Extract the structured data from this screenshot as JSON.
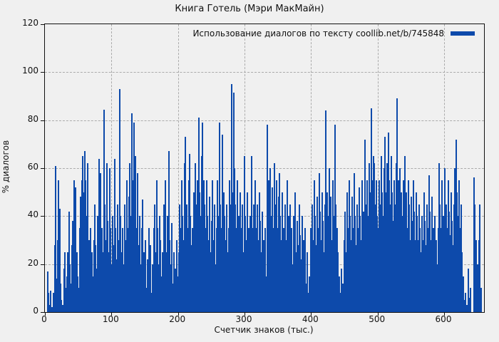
{
  "title": "Книга Готель (Мэри МакМайн)",
  "legend": {
    "label": "Использование диалогов по тексту coollib.net/b/745848",
    "swatch_color": "#0d4aab"
  },
  "colors": {
    "bar": "#0d4aab",
    "background": "#f0f0f0",
    "grid": "#ababab",
    "axis": "#111111"
  },
  "chart_data": {
    "type": "bar",
    "title": "Книга Готель (Мэри МакМайн)",
    "xlabel": "Счетчик знаков (тыс.)",
    "ylabel": "% диалогов",
    "legend": "Использование диалогов по тексту coollib.net/b/745848",
    "legend_position": "top-right-inside",
    "bar_color": "#0d4aab",
    "grid": true,
    "xlim": [
      0,
      660
    ],
    "ylim": [
      0,
      120
    ],
    "xticks": [
      0,
      100,
      200,
      300,
      400,
      500,
      600
    ],
    "yticks": [
      0,
      20,
      40,
      60,
      80,
      100,
      120
    ],
    "points": [
      [
        4,
        17
      ],
      [
        5.5,
        8
      ],
      [
        7,
        3
      ],
      [
        9,
        9
      ],
      [
        11,
        2
      ],
      [
        13,
        8
      ],
      [
        14.5,
        28
      ],
      [
        16,
        61
      ],
      [
        17.5,
        14
      ],
      [
        19,
        30
      ],
      [
        20.5,
        55
      ],
      [
        22,
        43
      ],
      [
        23.5,
        12
      ],
      [
        25,
        5
      ],
      [
        27,
        3
      ],
      [
        28.5,
        18
      ],
      [
        30,
        25
      ],
      [
        31.5,
        10
      ],
      [
        33,
        15
      ],
      [
        34.5,
        25
      ],
      [
        36,
        42
      ],
      [
        37.5,
        20
      ],
      [
        39,
        12
      ],
      [
        40.5,
        28
      ],
      [
        42,
        38
      ],
      [
        43.5,
        55
      ],
      [
        45,
        30
      ],
      [
        46.5,
        52
      ],
      [
        48,
        25
      ],
      [
        49.5,
        15
      ],
      [
        51,
        10
      ],
      [
        52.5,
        35
      ],
      [
        54,
        48
      ],
      [
        55.5,
        55
      ],
      [
        57,
        65
      ],
      [
        58.5,
        50
      ],
      [
        60,
        67
      ],
      [
        61.5,
        55
      ],
      [
        63,
        40
      ],
      [
        64.5,
        62
      ],
      [
        66,
        30
      ],
      [
        67.5,
        20
      ],
      [
        69,
        35
      ],
      [
        70.5,
        25
      ],
      [
        72,
        15
      ],
      [
        73.5,
        30
      ],
      [
        75,
        45
      ],
      [
        76.5,
        28
      ],
      [
        78,
        18
      ],
      [
        79.5,
        40
      ],
      [
        81,
        64
      ],
      [
        82.5,
        30
      ],
      [
        84,
        58
      ],
      [
        85.5,
        35
      ],
      [
        87,
        25
      ],
      [
        88.5,
        84.5
      ],
      [
        90,
        45
      ],
      [
        91.5,
        30
      ],
      [
        93,
        62
      ],
      [
        94.5,
        38
      ],
      [
        96,
        25
      ],
      [
        97.5,
        60
      ],
      [
        99,
        35
      ],
      [
        100.5,
        20
      ],
      [
        102,
        40
      ],
      [
        103.5,
        28
      ],
      [
        105,
        64
      ],
      [
        106.5,
        35
      ],
      [
        108,
        22
      ],
      [
        109.5,
        45
      ],
      [
        111,
        30
      ],
      [
        112.5,
        93
      ],
      [
        114,
        40
      ],
      [
        115.5,
        25
      ],
      [
        117,
        35
      ],
      [
        118.5,
        20
      ],
      [
        120,
        45
      ],
      [
        121.5,
        30
      ],
      [
        123,
        55
      ],
      [
        124.5,
        35
      ],
      [
        126,
        48
      ],
      [
        127.5,
        62
      ],
      [
        129,
        40
      ],
      [
        130.5,
        83
      ],
      [
        132,
        55
      ],
      [
        133.5,
        79
      ],
      [
        135,
        45
      ],
      [
        136.5,
        65
      ],
      [
        138,
        35
      ],
      [
        139.5,
        58
      ],
      [
        141,
        28
      ],
      [
        142.5,
        40
      ],
      [
        144,
        20
      ],
      [
        145.5,
        35
      ],
      [
        147,
        47
      ],
      [
        148.5,
        25
      ],
      [
        150,
        15
      ],
      [
        151.5,
        30
      ],
      [
        153,
        10
      ],
      [
        154.5,
        22
      ],
      [
        156,
        35
      ],
      [
        157.5,
        15
      ],
      [
        159,
        28
      ],
      [
        160.5,
        8
      ],
      [
        162,
        20
      ],
      [
        163.5,
        35
      ],
      [
        165,
        45
      ],
      [
        166.5,
        25
      ],
      [
        168,
        55
      ],
      [
        169.5,
        35
      ],
      [
        171,
        20
      ],
      [
        172.5,
        40
      ],
      [
        174,
        30
      ],
      [
        175.5,
        15
      ],
      [
        177,
        25
      ],
      [
        178.5,
        45
      ],
      [
        180,
        35
      ],
      [
        181.5,
        55
      ],
      [
        183,
        25
      ],
      [
        184.5,
        40
      ],
      [
        186,
        67
      ],
      [
        187.5,
        30
      ],
      [
        189,
        20
      ],
      [
        190.5,
        37
      ],
      [
        192,
        12
      ],
      [
        193.5,
        25
      ],
      [
        195,
        8
      ],
      [
        196.5,
        18
      ],
      [
        198,
        30
      ],
      [
        199.5,
        15
      ],
      [
        201,
        25
      ],
      [
        202.5,
        45
      ],
      [
        204,
        35
      ],
      [
        205.5,
        55
      ],
      [
        207,
        40
      ],
      [
        208.5,
        30
      ],
      [
        210,
        62
      ],
      [
        211.5,
        73
      ],
      [
        213,
        45
      ],
      [
        214.5,
        35
      ],
      [
        216,
        55
      ],
      [
        217.5,
        66
      ],
      [
        219,
        40
      ],
      [
        220.5,
        28
      ],
      [
        222,
        35
      ],
      [
        223.5,
        50
      ],
      [
        225,
        40
      ],
      [
        226.5,
        62
      ],
      [
        228,
        45
      ],
      [
        229.5,
        55
      ],
      [
        231,
        81
      ],
      [
        232.5,
        50
      ],
      [
        234,
        40
      ],
      [
        235.5,
        65
      ],
      [
        237,
        79
      ],
      [
        238.5,
        55
      ],
      [
        240,
        45
      ],
      [
        241.5,
        35
      ],
      [
        243,
        55
      ],
      [
        244.5,
        40
      ],
      [
        246,
        30
      ],
      [
        247.5,
        48
      ],
      [
        249,
        25
      ],
      [
        250.5,
        38
      ],
      [
        252,
        55
      ],
      [
        253.5,
        30
      ],
      [
        255,
        45
      ],
      [
        256.5,
        20
      ],
      [
        258,
        35
      ],
      [
        259.5,
        55
      ],
      [
        261,
        40
      ],
      [
        262.5,
        79
      ],
      [
        264,
        45
      ],
      [
        265.5,
        35
      ],
      [
        267,
        74
      ],
      [
        268.5,
        50
      ],
      [
        270,
        40
      ],
      [
        271.5,
        30
      ],
      [
        273,
        45
      ],
      [
        274.5,
        25
      ],
      [
        276,
        35
      ],
      [
        277.5,
        55
      ],
      [
        279,
        45
      ],
      [
        280.5,
        95
      ],
      [
        282,
        50
      ],
      [
        283.5,
        91.5
      ],
      [
        285,
        60
      ],
      [
        286.5,
        45
      ],
      [
        288,
        35
      ],
      [
        289.5,
        55
      ],
      [
        291,
        40
      ],
      [
        292.5,
        30
      ],
      [
        294,
        50
      ],
      [
        295.5,
        35
      ],
      [
        297,
        45
      ],
      [
        298.5,
        25
      ],
      [
        300,
        65
      ],
      [
        301.5,
        40
      ],
      [
        303,
        30
      ],
      [
        304.5,
        50
      ],
      [
        306,
        35
      ],
      [
        307.5,
        20
      ],
      [
        309,
        40
      ],
      [
        310.5,
        65
      ],
      [
        312,
        35
      ],
      [
        313.5,
        45
      ],
      [
        315,
        25
      ],
      [
        316.5,
        55
      ],
      [
        318,
        35
      ],
      [
        319.5,
        45
      ],
      [
        321,
        30
      ],
      [
        322.5,
        50
      ],
      [
        324,
        38
      ],
      [
        325.5,
        25
      ],
      [
        327,
        42
      ],
      [
        328.5,
        30
      ],
      [
        330,
        20
      ],
      [
        331.5,
        35
      ],
      [
        333,
        15
      ],
      [
        334.5,
        78
      ],
      [
        336,
        55
      ],
      [
        337.5,
        45
      ],
      [
        339,
        60
      ],
      [
        340.5,
        40
      ],
      [
        342,
        52
      ],
      [
        343.5,
        35
      ],
      [
        345,
        62
      ],
      [
        346.5,
        45
      ],
      [
        348,
        55
      ],
      [
        349.5,
        35
      ],
      [
        351,
        48
      ],
      [
        352.5,
        58
      ],
      [
        354,
        40
      ],
      [
        355.5,
        30
      ],
      [
        357,
        50
      ],
      [
        358.5,
        35
      ],
      [
        360,
        25
      ],
      [
        361.5,
        45
      ],
      [
        363,
        30
      ],
      [
        364.5,
        55
      ],
      [
        366,
        40
      ],
      [
        367.5,
        28
      ],
      [
        369,
        45
      ],
      [
        370.5,
        35
      ],
      [
        372,
        20
      ],
      [
        373.5,
        40
      ],
      [
        375,
        30
      ],
      [
        376.5,
        50
      ],
      [
        378,
        25
      ],
      [
        379.5,
        38
      ],
      [
        381,
        28
      ],
      [
        382.5,
        45
      ],
      [
        384,
        32
      ],
      [
        385.5,
        22
      ],
      [
        387,
        40
      ],
      [
        388.5,
        30
      ],
      [
        390,
        18
      ],
      [
        391.5,
        35
      ],
      [
        393,
        12
      ],
      [
        394.5,
        25
      ],
      [
        396,
        8
      ],
      [
        398,
        15
      ],
      [
        400,
        35
      ],
      [
        401.5,
        45
      ],
      [
        403,
        30
      ],
      [
        404.5,
        55
      ],
      [
        406,
        40
      ],
      [
        407.5,
        28
      ],
      [
        409,
        48
      ],
      [
        410.5,
        35
      ],
      [
        412,
        58
      ],
      [
        413.5,
        42
      ],
      [
        415,
        30
      ],
      [
        416.5,
        50
      ],
      [
        418,
        38
      ],
      [
        419.5,
        25
      ],
      [
        421,
        45
      ],
      [
        422.5,
        84
      ],
      [
        424,
        50
      ],
      [
        425.5,
        40
      ],
      [
        427,
        60
      ],
      [
        428.5,
        35
      ],
      [
        430,
        48
      ],
      [
        431.5,
        30
      ],
      [
        433,
        55
      ],
      [
        434.5,
        40
      ],
      [
        436,
        78
      ],
      [
        437.5,
        45
      ],
      [
        439,
        35
      ],
      [
        440.5,
        25
      ],
      [
        442,
        15
      ],
      [
        444,
        8
      ],
      [
        446,
        18
      ],
      [
        448,
        12
      ],
      [
        450,
        30
      ],
      [
        451.5,
        42
      ],
      [
        453,
        25
      ],
      [
        454.5,
        50
      ],
      [
        456,
        35
      ],
      [
        457.5,
        55
      ],
      [
        459,
        40
      ],
      [
        460.5,
        30
      ],
      [
        462,
        48
      ],
      [
        463.5,
        35
      ],
      [
        465,
        58
      ],
      [
        466.5,
        40
      ],
      [
        468,
        28
      ],
      [
        469.5,
        45
      ],
      [
        471,
        35
      ],
      [
        472.5,
        52
      ],
      [
        474,
        40
      ],
      [
        475.5,
        30
      ],
      [
        477,
        55
      ],
      [
        478.5,
        42
      ],
      [
        480,
        35
      ],
      [
        481.5,
        72
      ],
      [
        483,
        45
      ],
      [
        484.5,
        55
      ],
      [
        486,
        40
      ],
      [
        487.5,
        62
      ],
      [
        489,
        50
      ],
      [
        490.5,
        85
      ],
      [
        492,
        55
      ],
      [
        493.5,
        65
      ],
      [
        495,
        62
      ],
      [
        496.5,
        45
      ],
      [
        498,
        55
      ],
      [
        499.5,
        40
      ],
      [
        501,
        35
      ],
      [
        502.5,
        55
      ],
      [
        504,
        45
      ],
      [
        505.5,
        65
      ],
      [
        507,
        50
      ],
      [
        508.5,
        40
      ],
      [
        510,
        60
      ],
      [
        511.5,
        73
      ],
      [
        513,
        50
      ],
      [
        514.5,
        62
      ],
      [
        516,
        75
      ],
      [
        517.5,
        55
      ],
      [
        519,
        45
      ],
      [
        520.5,
        65
      ],
      [
        522,
        50
      ],
      [
        523.5,
        38
      ],
      [
        525,
        55
      ],
      [
        526.5,
        45
      ],
      [
        528,
        62
      ],
      [
        529.5,
        89
      ],
      [
        531,
        55
      ],
      [
        532.5,
        45
      ],
      [
        534,
        60
      ],
      [
        535.5,
        50
      ],
      [
        537,
        40
      ],
      [
        538.5,
        55
      ],
      [
        540,
        45
      ],
      [
        541.5,
        65
      ],
      [
        543,
        50
      ],
      [
        544.5,
        35
      ],
      [
        546,
        55
      ],
      [
        547.5,
        45
      ],
      [
        549,
        30
      ],
      [
        550.5,
        48
      ],
      [
        552,
        38
      ],
      [
        553.5,
        55
      ],
      [
        555,
        42
      ],
      [
        556.5,
        30
      ],
      [
        558,
        50
      ],
      [
        559.5,
        40
      ],
      [
        561,
        30
      ],
      [
        562.5,
        45
      ],
      [
        564,
        35
      ],
      [
        565.5,
        25
      ],
      [
        567,
        40
      ],
      [
        568.5,
        30
      ],
      [
        570,
        50
      ],
      [
        571.5,
        38
      ],
      [
        573,
        28
      ],
      [
        574.5,
        45
      ],
      [
        576,
        35
      ],
      [
        577.5,
        57
      ],
      [
        579,
        42
      ],
      [
        580.5,
        30
      ],
      [
        582,
        48
      ],
      [
        583.5,
        35
      ],
      [
        585,
        25
      ],
      [
        586.5,
        40
      ],
      [
        588,
        30
      ],
      [
        589.5,
        20
      ],
      [
        591,
        35
      ],
      [
        592.5,
        62
      ],
      [
        594,
        45
      ],
      [
        595.5,
        35
      ],
      [
        597,
        55
      ],
      [
        598.5,
        40
      ],
      [
        600,
        30
      ],
      [
        601.5,
        60
      ],
      [
        603,
        45
      ],
      [
        604.5,
        35
      ],
      [
        606,
        55
      ],
      [
        607.5,
        42
      ],
      [
        609,
        32
      ],
      [
        610.5,
        50
      ],
      [
        612,
        38
      ],
      [
        613.5,
        28
      ],
      [
        615,
        45
      ],
      [
        616.5,
        60
      ],
      [
        618,
        72
      ],
      [
        619.5,
        50
      ],
      [
        621,
        40
      ],
      [
        622.5,
        55
      ],
      [
        624,
        35
      ],
      [
        625.5,
        45
      ],
      [
        627,
        25
      ],
      [
        628.5,
        15
      ],
      [
        630,
        5
      ],
      [
        632,
        8
      ],
      [
        634,
        3
      ],
      [
        636,
        18
      ],
      [
        638,
        6
      ],
      [
        640,
        10
      ],
      [
        645,
        56
      ],
      [
        646.5,
        45
      ],
      [
        648,
        30
      ],
      [
        650,
        20
      ],
      [
        652,
        30
      ],
      [
        654,
        45
      ],
      [
        656,
        10
      ]
    ]
  }
}
